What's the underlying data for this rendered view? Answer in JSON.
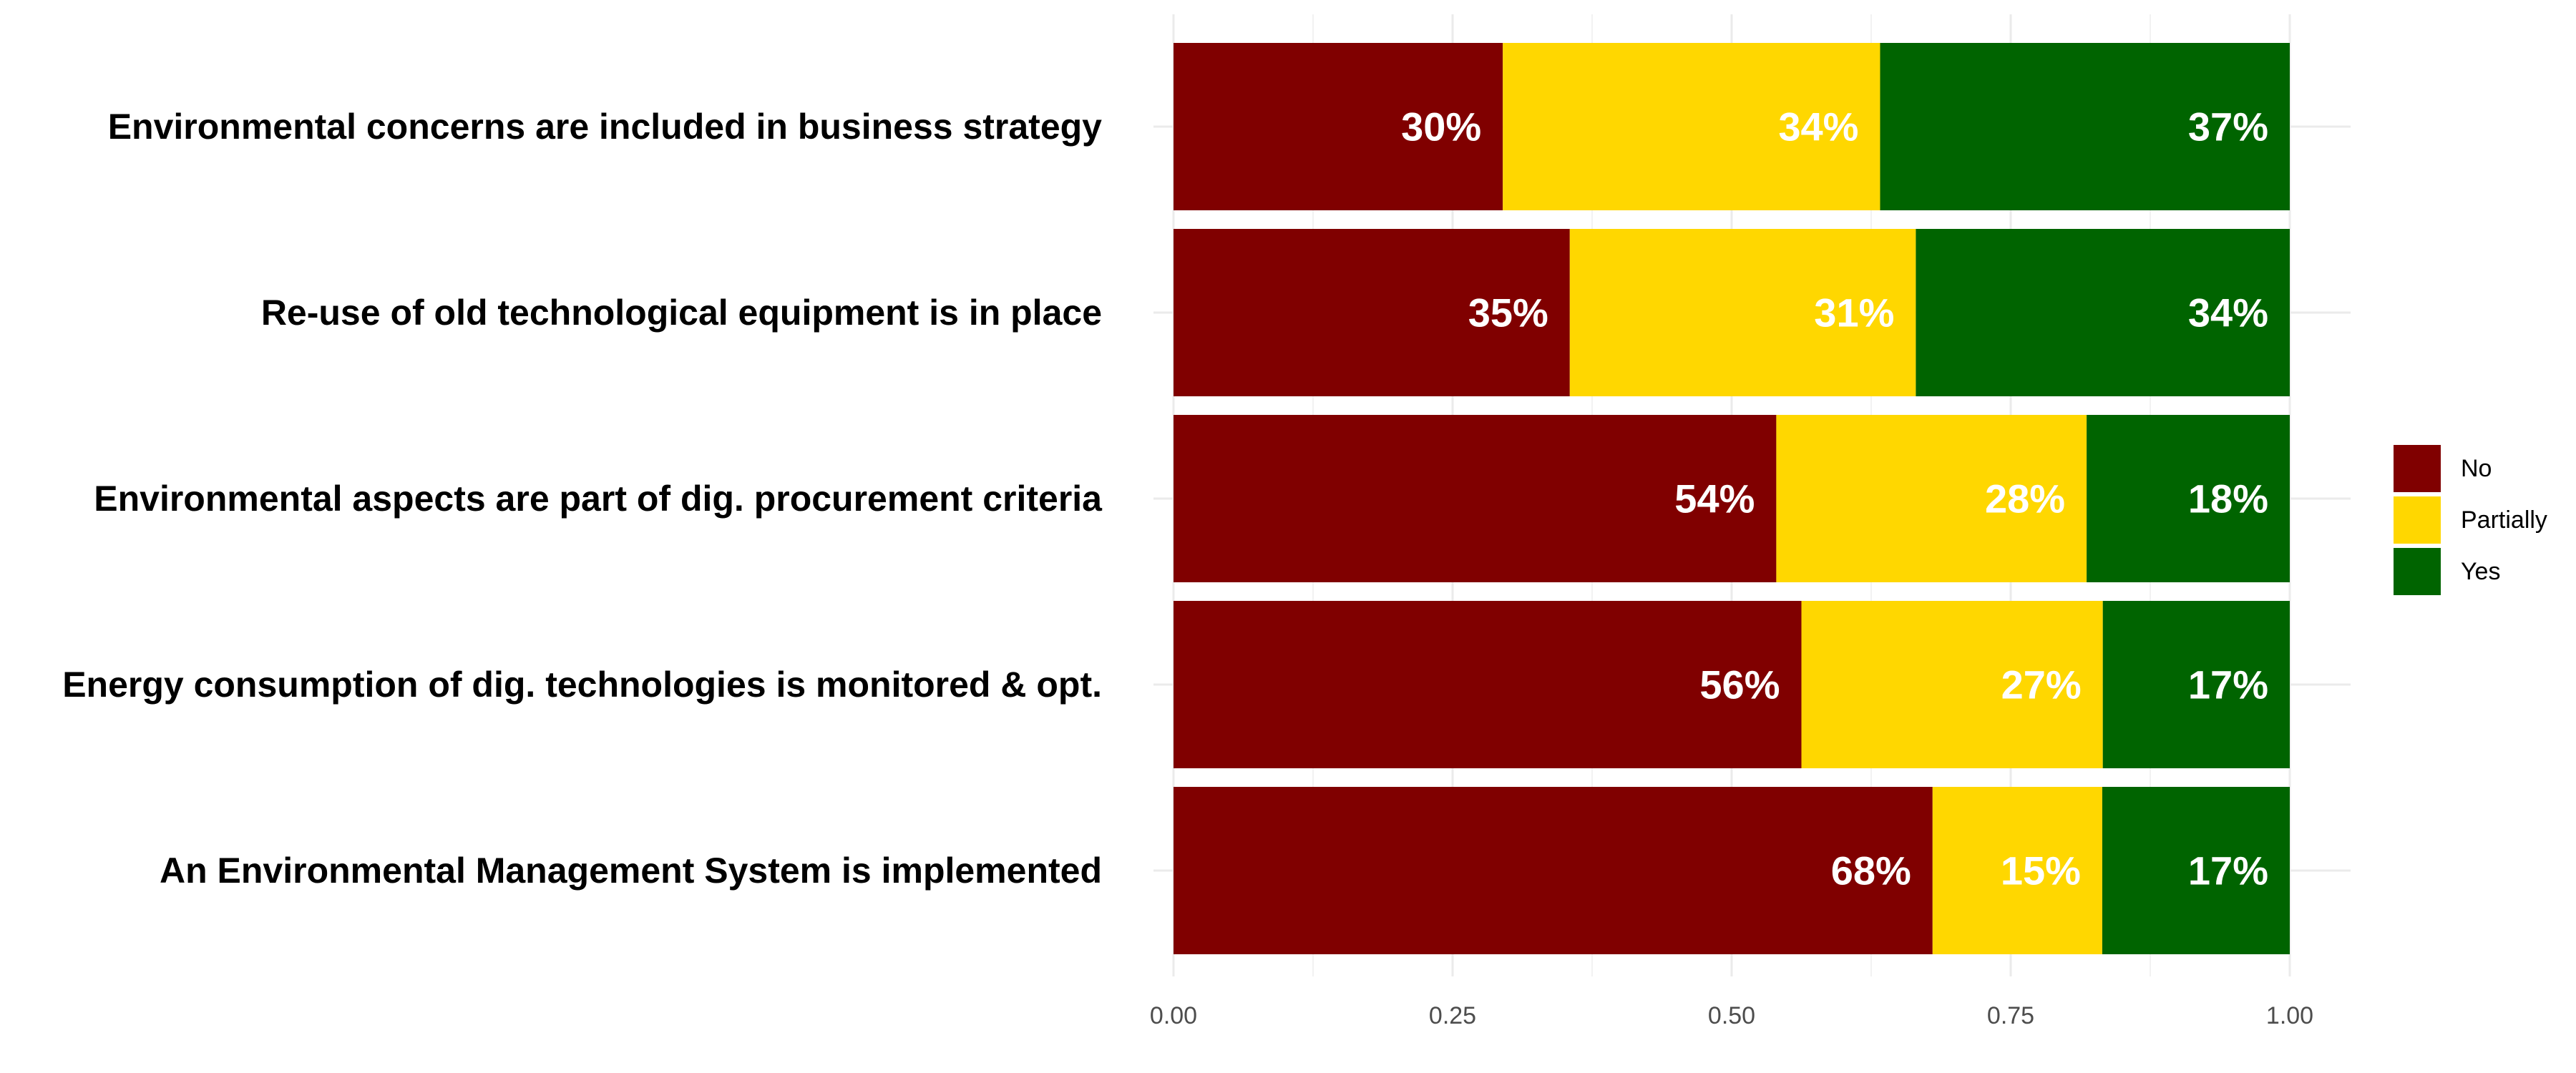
{
  "chart_data": {
    "type": "bar",
    "orientation": "horizontal",
    "stacked": true,
    "title": "",
    "xlabel": "",
    "ylabel": "",
    "xlim": [
      0,
      1
    ],
    "x_ticks": [
      0,
      0.25,
      0.5,
      0.75,
      1
    ],
    "x_tick_labels": [
      "0.00",
      "0.25",
      "0.50",
      "0.75",
      "1.00"
    ],
    "grid": true,
    "legend_position": "right",
    "categories": [
      "Environmental concerns are included in business strategy",
      "Re-use of old technological equipment is in place",
      "Environmental aspects are part of dig. procurement criteria",
      "Energy consumption of dig. technologies is monitored & opt.",
      "An Environmental Management System is implemented"
    ],
    "series": [
      {
        "name": "No",
        "color": "#800000",
        "values": [
          0.295,
          0.355,
          0.54,
          0.5625,
          0.68
        ],
        "labels": [
          "30%",
          "35%",
          "54%",
          "56%",
          "68%"
        ]
      },
      {
        "name": "Partially",
        "color": "#FFD700",
        "values": [
          0.338,
          0.31,
          0.278,
          0.27,
          0.152
        ],
        "labels": [
          "34%",
          "31%",
          "28%",
          "27%",
          "15%"
        ]
      },
      {
        "name": "Yes",
        "color": "#006400",
        "values": [
          0.367,
          0.335,
          0.182,
          0.1675,
          0.168
        ],
        "labels": [
          "37%",
          "34%",
          "18%",
          "17%",
          "17%"
        ]
      }
    ]
  }
}
